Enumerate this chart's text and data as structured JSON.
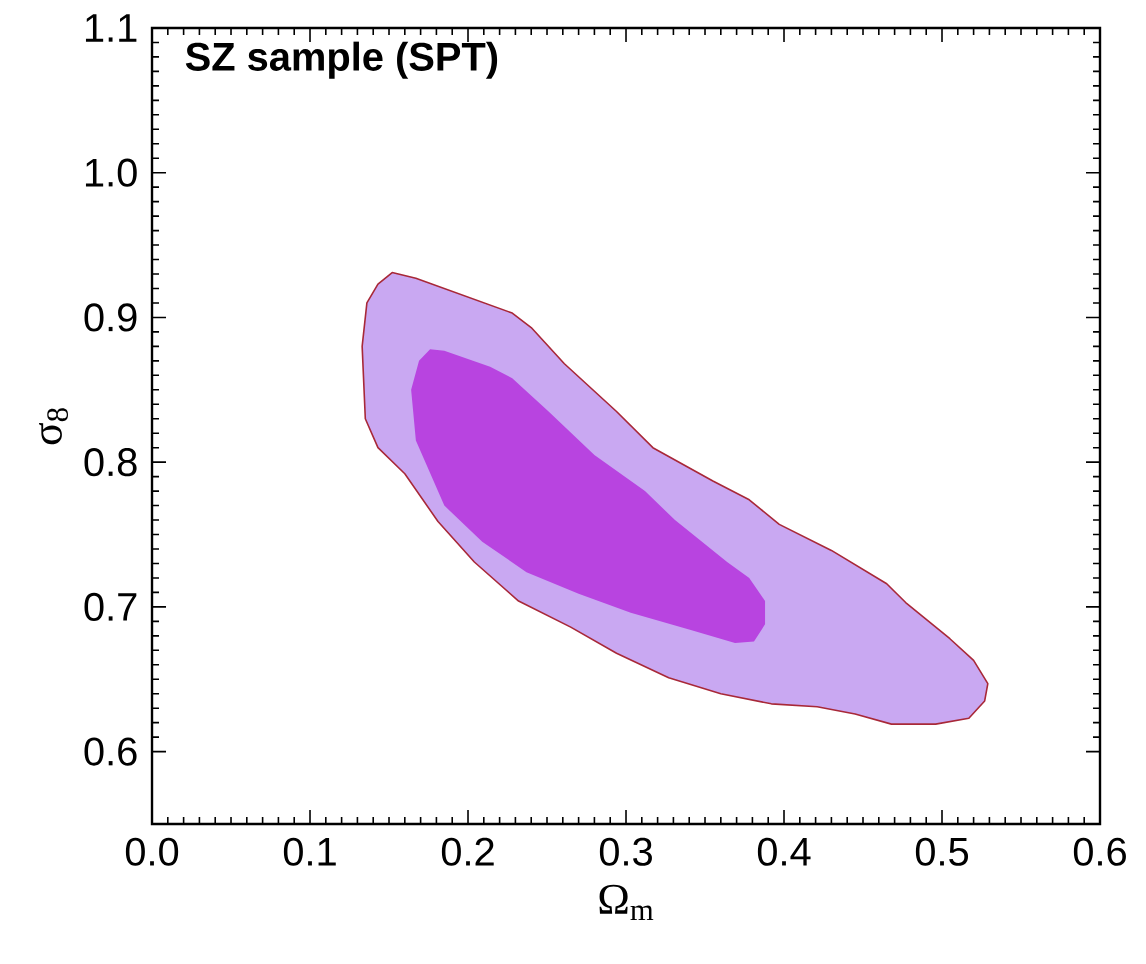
{
  "chart_data": {
    "type": "area",
    "title": "SZ sample (SPT)",
    "xlabel": "Ω$_{m}$",
    "ylabel": "σ$_{8}$",
    "xlim": [
      0.0,
      0.6
    ],
    "ylim": [
      0.55,
      1.1
    ],
    "xticks": [
      {
        "value": 0.0,
        "label": "0.0"
      },
      0.1,
      0.2,
      0.3,
      0.4,
      0.5,
      0.6
    ],
    "yticks": [
      0.6,
      0.7,
      0.8,
      0.9,
      {
        "value": 1.0,
        "label": "1.0"
      },
      1.1
    ],
    "grid": false,
    "series": [
      {
        "color": "#c9a8f2",
        "x": [
          0.152,
          0.167,
          0.228,
          0.24,
          0.261,
          0.294,
          0.317,
          0.355,
          0.378,
          0.397,
          0.43,
          0.465,
          0.477,
          0.505,
          0.52,
          0.529,
          0.527,
          0.517,
          0.496,
          0.468,
          0.445,
          0.421,
          0.392,
          0.36,
          0.327,
          0.294,
          0.265,
          0.232,
          0.204,
          0.181,
          0.16,
          0.143,
          0.135,
          0.133,
          0.136,
          0.143
        ],
        "values": [
          0.931,
          0.927,
          0.903,
          0.893,
          0.868,
          0.835,
          0.81,
          0.787,
          0.774,
          0.757,
          0.739,
          0.716,
          0.703,
          0.678,
          0.663,
          0.647,
          0.635,
          0.623,
          0.619,
          0.619,
          0.626,
          0.631,
          0.633,
          0.64,
          0.651,
          0.668,
          0.686,
          0.704,
          0.731,
          0.759,
          0.792,
          0.81,
          0.83,
          0.88,
          0.91,
          0.923
        ]
      },
      {
        "color": "#b844e0",
        "x": [
          0.176,
          0.185,
          0.214,
          0.228,
          0.251,
          0.28,
          0.312,
          0.331,
          0.364,
          0.378,
          0.388,
          0.388,
          0.381,
          0.369,
          0.341,
          0.303,
          0.27,
          0.237,
          0.209,
          0.185,
          0.167,
          0.164,
          0.169
        ],
        "values": [
          0.878,
          0.877,
          0.866,
          0.858,
          0.835,
          0.805,
          0.78,
          0.76,
          0.731,
          0.72,
          0.704,
          0.688,
          0.676,
          0.675,
          0.684,
          0.696,
          0.709,
          0.724,
          0.745,
          0.77,
          0.815,
          0.85,
          0.87
        ]
      }
    ]
  }
}
